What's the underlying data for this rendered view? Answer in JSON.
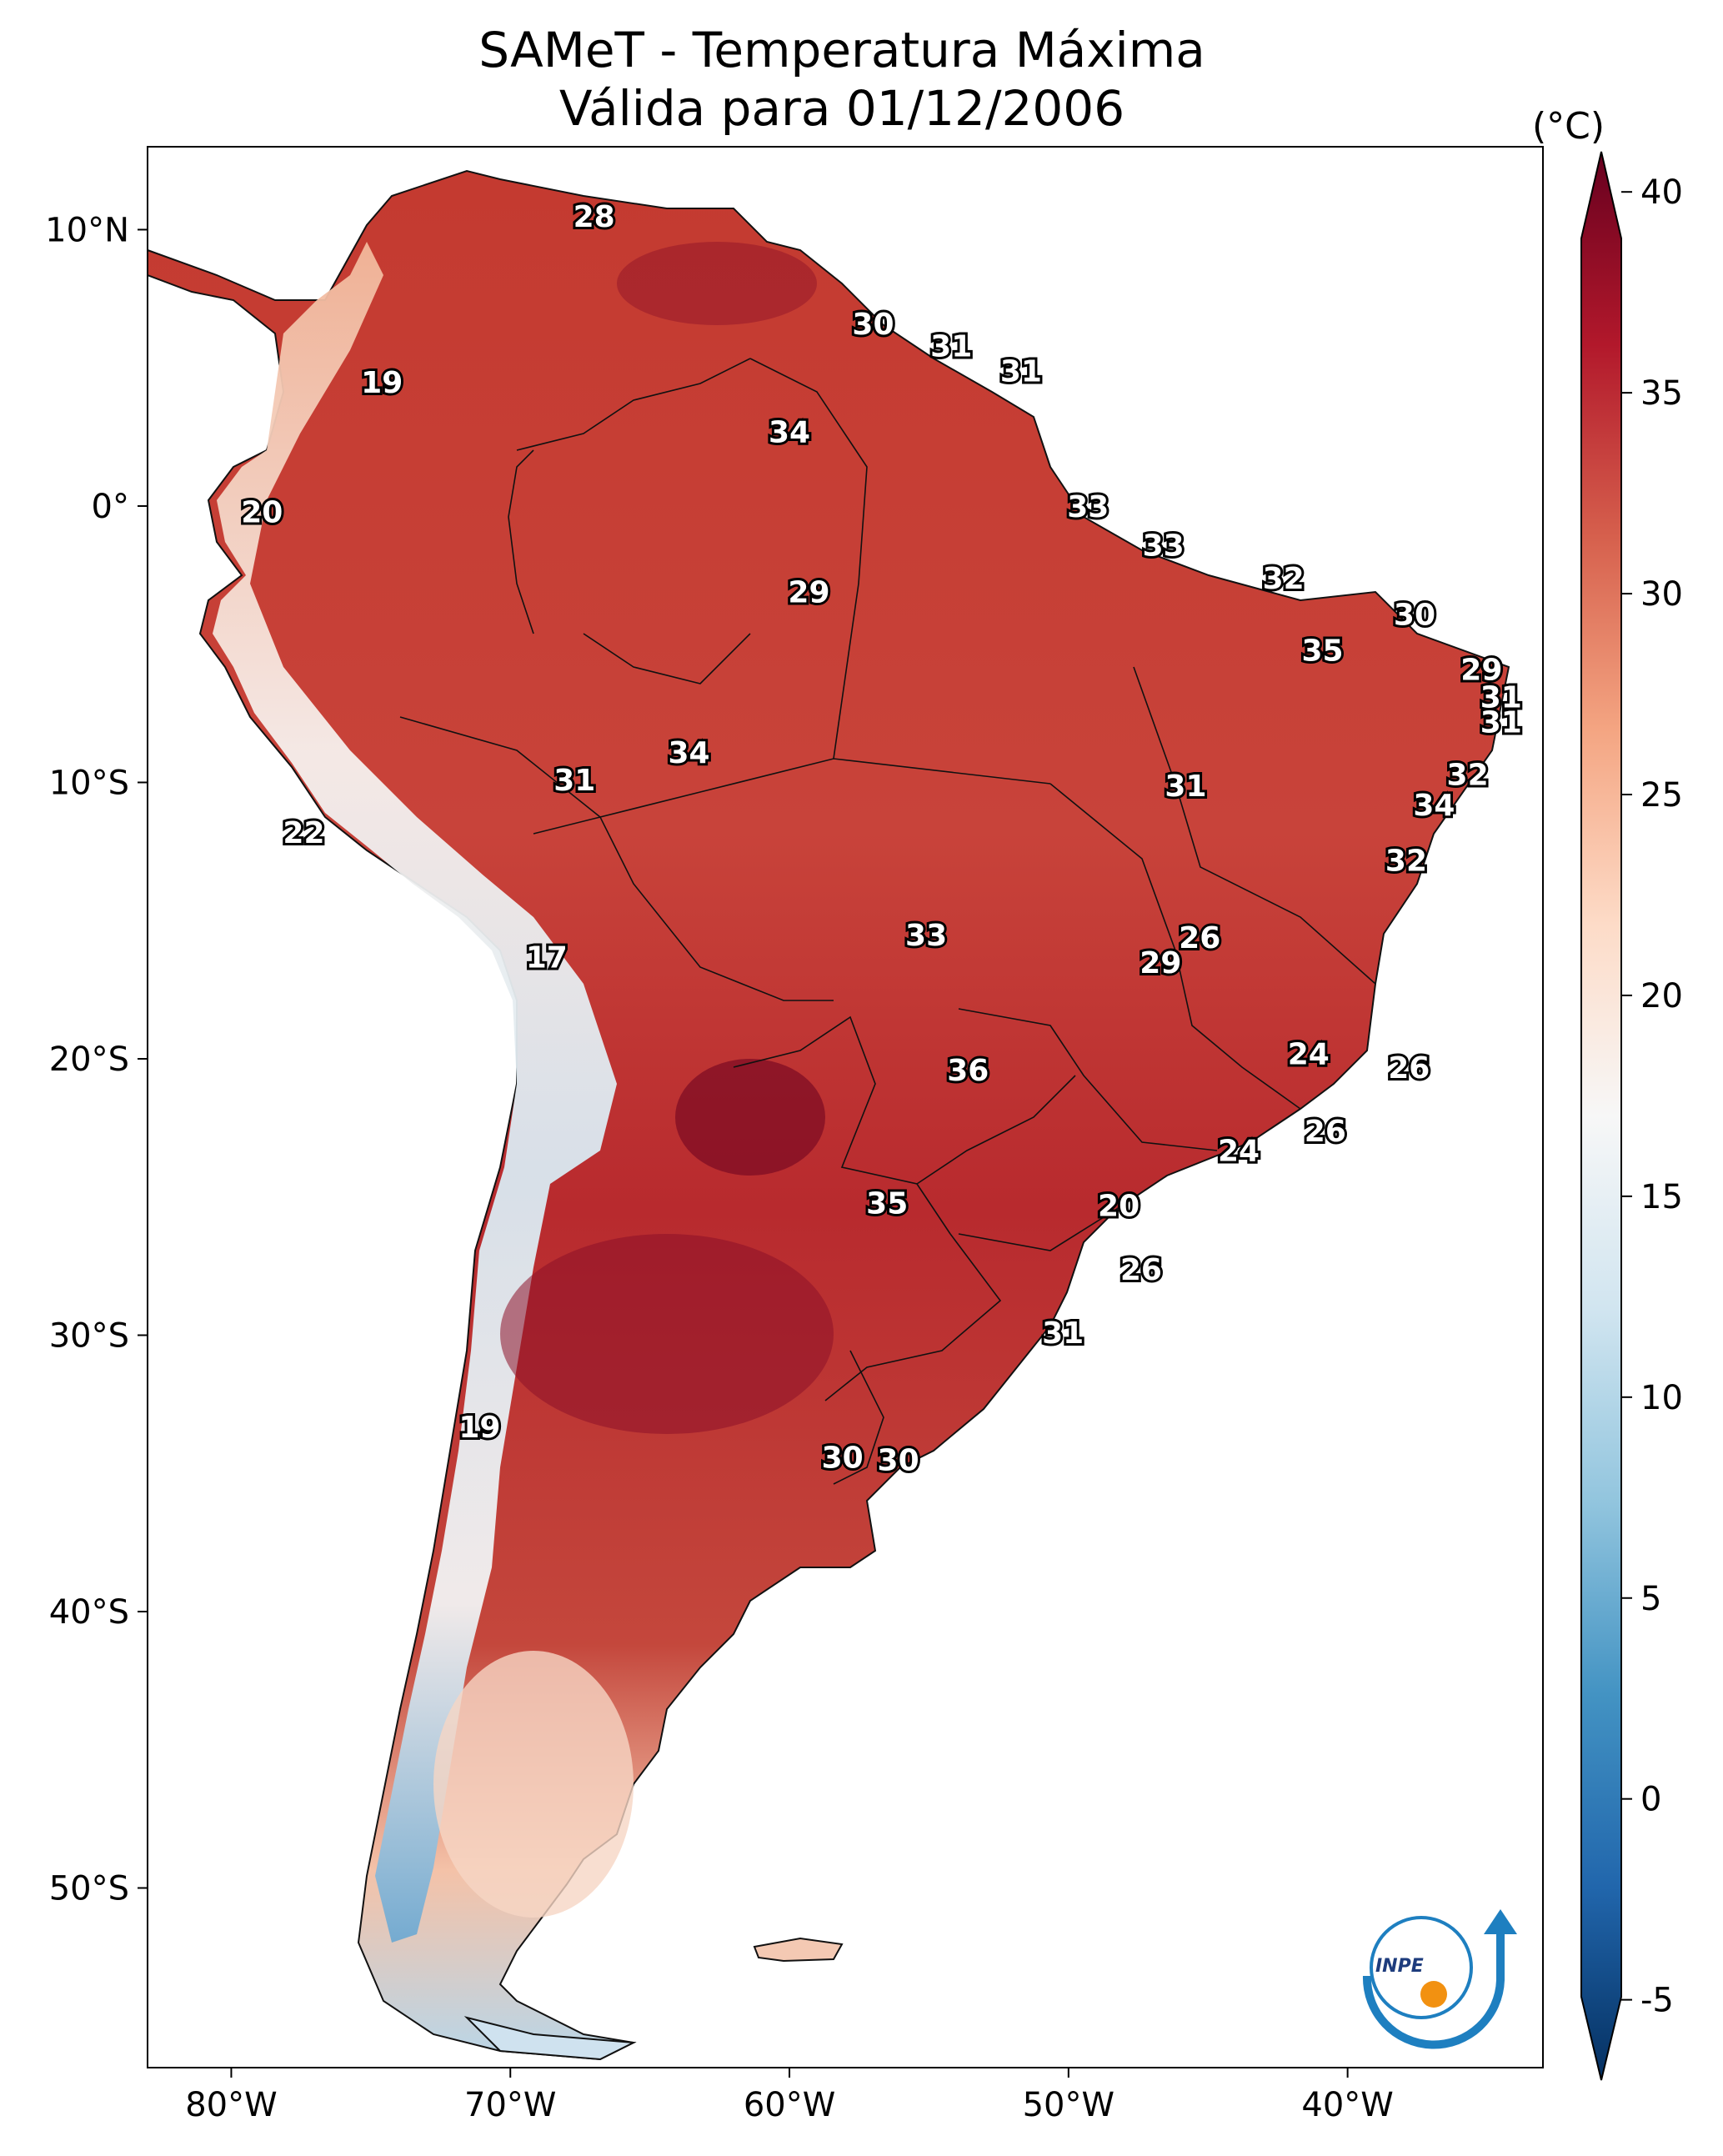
{
  "title": {
    "line1": "SAMeT - Temperatura Máxima",
    "line2": "Válida para 01/12/2006"
  },
  "colorbar": {
    "unit": "(°C)",
    "ticks": [
      40,
      35,
      30,
      25,
      20,
      15,
      10,
      5,
      0,
      -5
    ],
    "tick_labels": [
      "40",
      "35",
      "30",
      "25",
      "20",
      "15",
      "10",
      "5",
      "0",
      "-5"
    ],
    "range": [
      -7,
      41
    ],
    "colors": [
      "#053061",
      "#2166ac",
      "#4393c3",
      "#92c5de",
      "#d1e5f0",
      "#f7f7f7",
      "#fddbc7",
      "#f4a582",
      "#d6604d",
      "#b2182b",
      "#67001f"
    ]
  },
  "axes": {
    "lon_ticks": [
      -80,
      -70,
      -60,
      -50,
      -40
    ],
    "lon_labels": [
      "80°W",
      "70°W",
      "60°W",
      "50°W",
      "40°W"
    ],
    "lat_ticks": [
      10,
      0,
      -10,
      -20,
      -30,
      -40,
      -50
    ],
    "lat_labels": [
      "10°N",
      "0°",
      "10°S",
      "20°S",
      "30°S",
      "40°S",
      "50°S"
    ],
    "lon_range": [
      -83,
      -33
    ],
    "lat_range": [
      -56.5,
      13
    ]
  },
  "contour_labels": [
    {
      "text": "28",
      "lon": -67,
      "lat": 10.5
    },
    {
      "text": "30",
      "lon": -57,
      "lat": 6.6
    },
    {
      "text": "31",
      "lon": -54.2,
      "lat": 5.8
    },
    {
      "text": "31",
      "lon": -51.7,
      "lat": 4.9
    },
    {
      "text": "19",
      "lon": -74.6,
      "lat": 4.5
    },
    {
      "text": "34",
      "lon": -60,
      "lat": 2.7
    },
    {
      "text": "33",
      "lon": -49.3,
      "lat": 0
    },
    {
      "text": "20",
      "lon": -78.9,
      "lat": -0.2
    },
    {
      "text": "33",
      "lon": -46.6,
      "lat": -1.4
    },
    {
      "text": "32",
      "lon": -42.3,
      "lat": -2.6
    },
    {
      "text": "29",
      "lon": -59.3,
      "lat": -3.1
    },
    {
      "text": "30",
      "lon": -37.6,
      "lat": -3.9
    },
    {
      "text": "35",
      "lon": -40.9,
      "lat": -5.2
    },
    {
      "text": "29",
      "lon": -35.2,
      "lat": -5.9
    },
    {
      "text": "31",
      "lon": -34.5,
      "lat": -6.9
    },
    {
      "text": "31",
      "lon": -34.5,
      "lat": -7.8
    },
    {
      "text": "34",
      "lon": -63.6,
      "lat": -8.9
    },
    {
      "text": "31",
      "lon": -67.7,
      "lat": -9.9
    },
    {
      "text": "32",
      "lon": -35.7,
      "lat": -9.7
    },
    {
      "text": "31",
      "lon": -45.8,
      "lat": -10.1
    },
    {
      "text": "34",
      "lon": -36.9,
      "lat": -10.8
    },
    {
      "text": "22",
      "lon": -77.4,
      "lat": -11.8
    },
    {
      "text": "32",
      "lon": -37.9,
      "lat": -12.8
    },
    {
      "text": "33",
      "lon": -55.1,
      "lat": -15.5
    },
    {
      "text": "26",
      "lon": -45.3,
      "lat": -15.6
    },
    {
      "text": "29",
      "lon": -46.7,
      "lat": -16.5
    },
    {
      "text": "17",
      "lon": -68.7,
      "lat": -16.3
    },
    {
      "text": "24",
      "lon": -41.4,
      "lat": -19.8
    },
    {
      "text": "26",
      "lon": -37.8,
      "lat": -20.3
    },
    {
      "text": "36",
      "lon": -53.6,
      "lat": -20.4
    },
    {
      "text": "26",
      "lon": -40.8,
      "lat": -22.6
    },
    {
      "text": "24",
      "lon": -43.9,
      "lat": -23.3
    },
    {
      "text": "35",
      "lon": -56.5,
      "lat": -25.2
    },
    {
      "text": "20",
      "lon": -48.2,
      "lat": -25.3
    },
    {
      "text": "26",
      "lon": -47.4,
      "lat": -27.6
    },
    {
      "text": "31",
      "lon": -50.2,
      "lat": -29.9
    },
    {
      "text": "19",
      "lon": -71.1,
      "lat": -33.3
    },
    {
      "text": "30",
      "lon": -58.1,
      "lat": -34.4
    },
    {
      "text": "30",
      "lon": -56.1,
      "lat": -34.5
    }
  ],
  "logo": {
    "text": "INPE"
  }
}
